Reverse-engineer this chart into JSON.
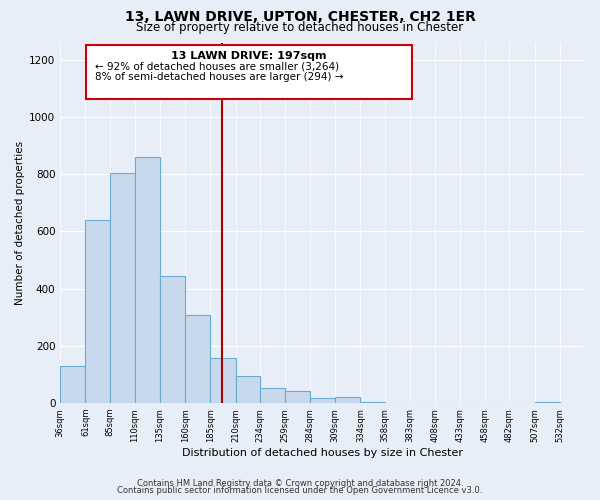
{
  "title": "13, LAWN DRIVE, UPTON, CHESTER, CH2 1ER",
  "subtitle": "Size of property relative to detached houses in Chester",
  "xlabel": "Distribution of detached houses by size in Chester",
  "ylabel": "Number of detached properties",
  "bar_left_edges": [
    36,
    61,
    85,
    110,
    135,
    160,
    185,
    210,
    234,
    259,
    284,
    309,
    334,
    358,
    383,
    408,
    433,
    458,
    482,
    507
  ],
  "bar_heights": [
    130,
    640,
    805,
    860,
    445,
    308,
    157,
    95,
    52,
    42,
    17,
    22,
    5,
    2,
    0,
    0,
    0,
    0,
    0,
    5
  ],
  "bar_widths": [
    25,
    24,
    25,
    25,
    25,
    25,
    25,
    24,
    25,
    25,
    25,
    25,
    24,
    25,
    25,
    25,
    25,
    24,
    25,
    25
  ],
  "tick_labels": [
    "36sqm",
    "61sqm",
    "85sqm",
    "110sqm",
    "135sqm",
    "160sqm",
    "185sqm",
    "210sqm",
    "234sqm",
    "259sqm",
    "284sqm",
    "309sqm",
    "334sqm",
    "358sqm",
    "383sqm",
    "408sqm",
    "433sqm",
    "458sqm",
    "482sqm",
    "507sqm",
    "532sqm"
  ],
  "tick_positions": [
    36,
    61,
    85,
    110,
    135,
    160,
    185,
    210,
    234,
    259,
    284,
    309,
    334,
    358,
    383,
    408,
    433,
    458,
    482,
    507,
    532
  ],
  "bar_color": "#c8d9ee",
  "bar_edge_color": "#6aabd2",
  "property_line_x": 197,
  "property_line_color": "#aa0000",
  "ylim": [
    0,
    1260
  ],
  "xlim": [
    36,
    557
  ],
  "annotation_title": "13 LAWN DRIVE: 197sqm",
  "annotation_line1": "← 92% of detached houses are smaller (3,264)",
  "annotation_line2": "8% of semi-detached houses are larger (294) →",
  "annotation_box_color": "#ffffff",
  "annotation_border_color": "#cc0000",
  "footer_line1": "Contains HM Land Registry data © Crown copyright and database right 2024.",
  "footer_line2": "Contains public sector information licensed under the Open Government Licence v3.0.",
  "bg_color": "#e8eef8",
  "plot_bg_color": "#e8eef8",
  "grid_color": "#ffffff",
  "title_fontsize": 10,
  "subtitle_fontsize": 8.5
}
